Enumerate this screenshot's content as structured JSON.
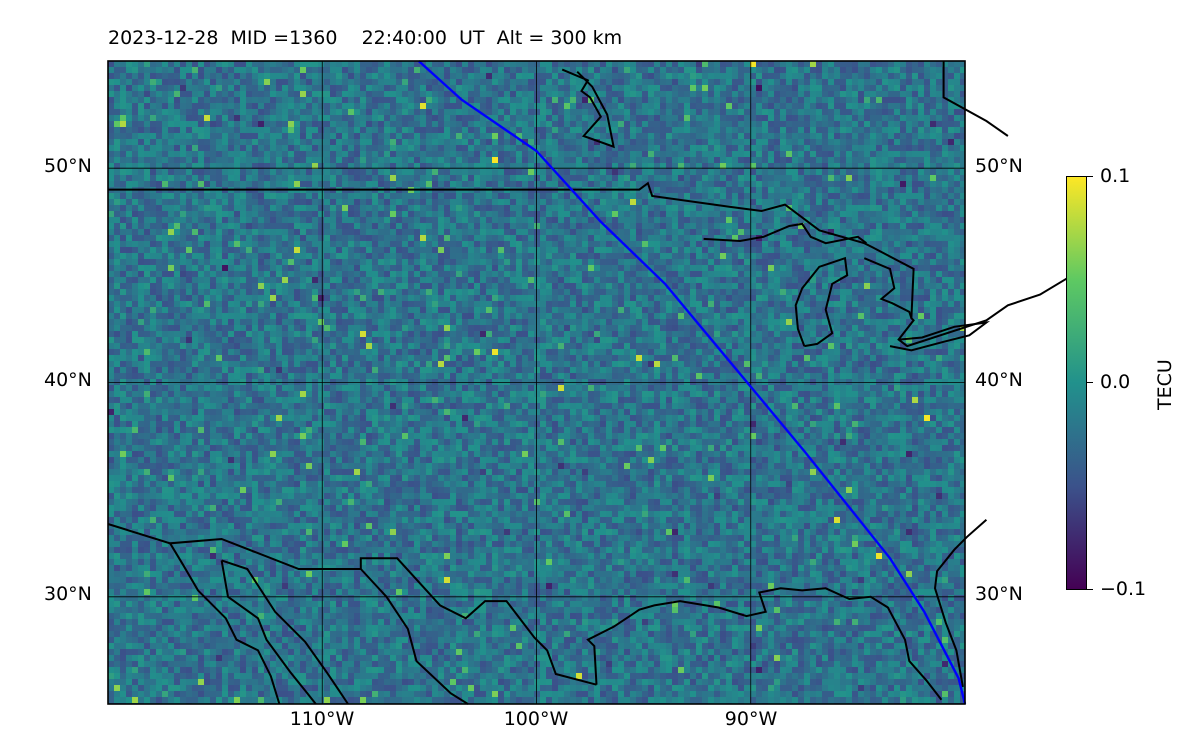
{
  "title": {
    "date": "2023-12-28",
    "mid": "MID =1360",
    "time": "22:40:00  UT",
    "alt": "Alt = 300 km",
    "full": "2023-12-28  MID =1360    22:40:00  UT  Alt = 300 km"
  },
  "map": {
    "projection": "PlateCarree",
    "lon_range": [
      -120,
      -80
    ],
    "lat_range": [
      25,
      55
    ],
    "lat_labels": [
      "50°N",
      "40°N",
      "30°N"
    ],
    "lat_values": [
      50,
      40,
      30
    ],
    "lon_labels": [
      "110°W",
      "100°W",
      "90°W"
    ],
    "lon_values": [
      -110,
      -100,
      -90
    ],
    "grid": true,
    "track_color": "#0000ff",
    "coastline_color": "#000000"
  },
  "colorbar": {
    "label": "TECU",
    "ticks": [
      "0.1",
      "0.0",
      "−0.1"
    ],
    "tick_values": [
      0.1,
      0.0,
      -0.1
    ],
    "vmin": -0.1,
    "vmax": 0.1,
    "colormap": "viridis",
    "colors": [
      "#440154",
      "#3b528b",
      "#21918c",
      "#5ec962",
      "#fde725"
    ]
  }
}
